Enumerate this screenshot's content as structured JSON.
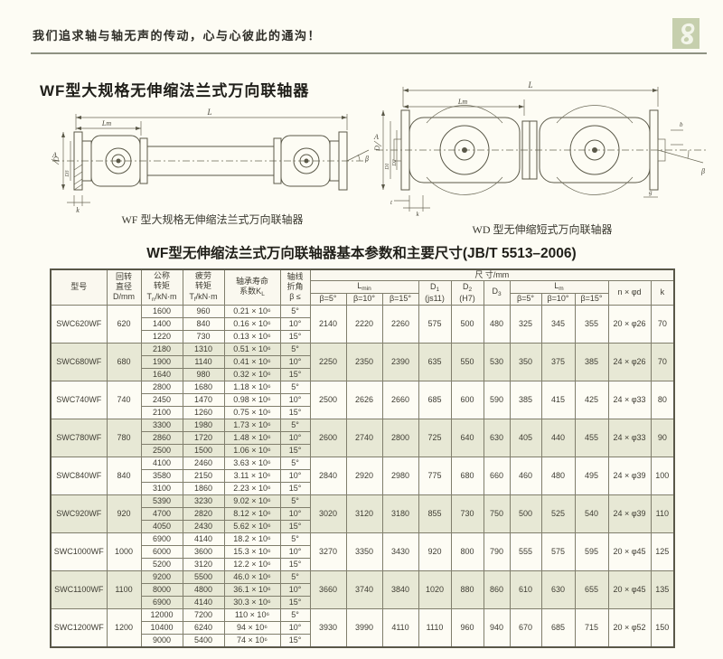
{
  "banner": {
    "slogan": "我们追求轴与轴无声的传动，心与心彼此的通沟！"
  },
  "section": {
    "title": "WF型大规格无伸缩法兰式万向联轴器"
  },
  "diagrams": {
    "left": {
      "caption": "WF 型大规格无伸缩法兰式万向联轴器",
      "dims": {
        "L": "L",
        "Lm": "Lm",
        "A": "A",
        "D": "D",
        "D3": "D3",
        "beta": "β",
        "k": "k"
      }
    },
    "right": {
      "caption": "WD 型无伸缩短式万向联轴器",
      "dims": {
        "L": "L",
        "Lm": "Lm",
        "A": "A",
        "D": "D",
        "D1": "D1",
        "D2": "D2",
        "b": "b",
        "beta": "β",
        "g": "g",
        "t": "t",
        "k": "k"
      }
    }
  },
  "table": {
    "title": "WF型无伸缩法兰式万向联轴器基本参数和主要尺寸(JB/T 5513–2006)",
    "header": {
      "model": "型号",
      "diameter": {
        "l1": "回转",
        "l2": "直径",
        "l3": "D/mm"
      },
      "nominal": {
        "l1": "公称",
        "l2": "转矩",
        "sym": "T",
        "sub": "n",
        "unit": "/kN·m"
      },
      "fatigue": {
        "l1": "疲劳",
        "l2": "转矩",
        "sym": "T",
        "sub": "f",
        "unit": "/kN·m"
      },
      "life": {
        "l1": "轴承寿命",
        "l2": "系数K",
        "sub": "L"
      },
      "angle": {
        "l1": "轴线",
        "l2": "折角",
        "l3": "β ≤"
      },
      "size_group": "尺 寸/mm",
      "lmin": {
        "sym": "L",
        "sub": "min"
      },
      "lm": {
        "sym": "L",
        "sub": "m"
      },
      "d1": {
        "sym": "D",
        "sub": "1",
        "tol": "(js11)"
      },
      "d2": {
        "sym": "D",
        "sub": "2",
        "tol": "(H7)"
      },
      "d3": {
        "sym": "D",
        "sub": "3"
      },
      "nxd": "n × φd",
      "k": "k",
      "betas": [
        "β=5°",
        "β=10°",
        "β=15°"
      ]
    },
    "rows": [
      {
        "model": "SWC620WF",
        "d": "620",
        "shaded": false,
        "subs": [
          [
            "1600",
            "960",
            "0.21 × 10⁶",
            "5°"
          ],
          [
            "1400",
            "840",
            "0.16 × 10⁶",
            "10°"
          ],
          [
            "1220",
            "730",
            "0.13 × 10⁶",
            "15°"
          ]
        ],
        "lmin": [
          "2140",
          "2220",
          "2260"
        ],
        "d1": "575",
        "d2": "500",
        "d3": "480",
        "lm": [
          "325",
          "345",
          "355"
        ],
        "nxd": "20 × φ26",
        "k": "70"
      },
      {
        "model": "SWC680WF",
        "d": "680",
        "shaded": true,
        "subs": [
          [
            "2180",
            "1310",
            "0.51 × 10⁶",
            "5°"
          ],
          [
            "1900",
            "1140",
            "0.41 × 10⁶",
            "10°"
          ],
          [
            "1640",
            "980",
            "0.32 × 10⁶",
            "15°"
          ]
        ],
        "lmin": [
          "2250",
          "2350",
          "2390"
        ],
        "d1": "635",
        "d2": "550",
        "d3": "530",
        "lm": [
          "350",
          "375",
          "385"
        ],
        "nxd": "24 × φ26",
        "k": "70"
      },
      {
        "model": "SWC740WF",
        "d": "740",
        "shaded": false,
        "subs": [
          [
            "2800",
            "1680",
            "1.18 × 10⁶",
            "5°"
          ],
          [
            "2450",
            "1470",
            "0.98 × 10⁶",
            "10°"
          ],
          [
            "2100",
            "1260",
            "0.75 × 10⁶",
            "15°"
          ]
        ],
        "lmin": [
          "2500",
          "2626",
          "2660"
        ],
        "d1": "685",
        "d2": "600",
        "d3": "590",
        "lm": [
          "385",
          "415",
          "425"
        ],
        "nxd": "24 × φ33",
        "k": "80"
      },
      {
        "model": "SWC780WF",
        "d": "780",
        "shaded": true,
        "subs": [
          [
            "3300",
            "1980",
            "1.73 × 10⁶",
            "5°"
          ],
          [
            "2860",
            "1720",
            "1.48 × 10⁶",
            "10°"
          ],
          [
            "2500",
            "1500",
            "1.06 × 10⁶",
            "15°"
          ]
        ],
        "lmin": [
          "2600",
          "2740",
          "2800"
        ],
        "d1": "725",
        "d2": "640",
        "d3": "630",
        "lm": [
          "405",
          "440",
          "455"
        ],
        "nxd": "24 × φ33",
        "k": "90"
      },
      {
        "model": "SWC840WF",
        "d": "840",
        "shaded": false,
        "subs": [
          [
            "4100",
            "2460",
            "3.63 × 10⁶",
            "5°"
          ],
          [
            "3580",
            "2150",
            "3.11 × 10⁶",
            "10°"
          ],
          [
            "3100",
            "1860",
            "2.23 × 10⁶",
            "15°"
          ]
        ],
        "lmin": [
          "2840",
          "2920",
          "2980"
        ],
        "d1": "775",
        "d2": "680",
        "d3": "660",
        "lm": [
          "460",
          "480",
          "495"
        ],
        "nxd": "24 × φ39",
        "k": "100"
      },
      {
        "model": "SWC920WF",
        "d": "920",
        "shaded": true,
        "subs": [
          [
            "5390",
            "3230",
            "9.02 × 10⁶",
            "5°"
          ],
          [
            "4700",
            "2820",
            "8.12 × 10⁶",
            "10°"
          ],
          [
            "4050",
            "2430",
            "5.62 × 10⁶",
            "15°"
          ]
        ],
        "lmin": [
          "3020",
          "3120",
          "3180"
        ],
        "d1": "855",
        "d2": "730",
        "d3": "750",
        "lm": [
          "500",
          "525",
          "540"
        ],
        "nxd": "24 × φ39",
        "k": "110"
      },
      {
        "model": "SWC1000WF",
        "d": "1000",
        "shaded": false,
        "subs": [
          [
            "6900",
            "4140",
            "18.2 × 10⁶",
            "5°"
          ],
          [
            "6000",
            "3600",
            "15.3 × 10⁶",
            "10°"
          ],
          [
            "5200",
            "3120",
            "12.2 × 10⁶",
            "15°"
          ]
        ],
        "lmin": [
          "3270",
          "3350",
          "3430"
        ],
        "d1": "920",
        "d2": "800",
        "d3": "790",
        "lm": [
          "555",
          "575",
          "595"
        ],
        "nxd": "20 × φ45",
        "k": "125"
      },
      {
        "model": "SWC1100WF",
        "d": "1100",
        "shaded": true,
        "subs": [
          [
            "9200",
            "5500",
            "46.0 × 10⁶",
            "5°"
          ],
          [
            "8000",
            "4800",
            "36.1 × 10⁶",
            "10°"
          ],
          [
            "6900",
            "4140",
            "30.3 × 10⁶",
            "15°"
          ]
        ],
        "lmin": [
          "3660",
          "3740",
          "3840"
        ],
        "d1": "1020",
        "d2": "880",
        "d3": "860",
        "lm": [
          "610",
          "630",
          "655"
        ],
        "nxd": "20 × φ45",
        "k": "135"
      },
      {
        "model": "SWC1200WF",
        "d": "1200",
        "shaded": false,
        "subs": [
          [
            "12000",
            "7200",
            "110 × 10⁶",
            "5°"
          ],
          [
            "10400",
            "6240",
            "94 × 10⁶",
            "10°"
          ],
          [
            "9000",
            "5400",
            "74 × 10⁶",
            "15°"
          ]
        ],
        "lmin": [
          "3930",
          "3990",
          "4110"
        ],
        "d1": "1110",
        "d2": "960",
        "d3": "940",
        "lm": [
          "670",
          "685",
          "715"
        ],
        "nxd": "20 × φ52",
        "k": "150"
      }
    ]
  },
  "colors": {
    "logo_bg": "#c6cfad",
    "row_shade": "#e7e8d5",
    "rule": "#8e9282"
  }
}
